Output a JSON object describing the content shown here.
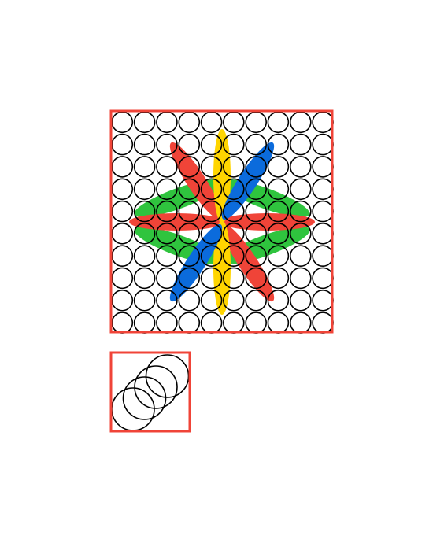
{
  "colors": {
    "background": "#ffffff",
    "frame": "#f04438",
    "circle_stroke": "#000000",
    "petal_red": "#f04438",
    "petal_yellow": "#ffd500",
    "petal_blue": "#0b6bdc",
    "petal_green": "#2fc43e"
  },
  "grid": {
    "rows": 10,
    "cols": 10
  },
  "star": {
    "petal_order": [
      "green",
      "red",
      "yellow",
      "blue"
    ],
    "petal_colors": {
      "green": "petal_green",
      "red": "petal_red",
      "yellow": "petal_yellow",
      "blue": "petal_blue"
    }
  },
  "sample": {
    "circle_count": 4
  }
}
